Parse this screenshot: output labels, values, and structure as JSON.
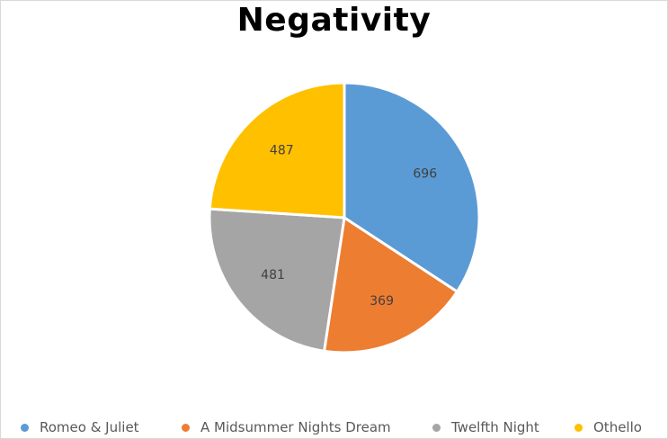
{
  "chart_data": {
    "type": "pie",
    "title": "Negativity",
    "categories": [
      "Romeo & Juliet",
      "A Midsummer Nights Dream",
      "Twelfth Night",
      "Othello"
    ],
    "values": [
      696,
      369,
      481,
      487
    ],
    "colors": [
      "#5b9bd5",
      "#ed7d31",
      "#a5a5a5",
      "#ffc000"
    ],
    "data_labels": [
      "696",
      "369",
      "481",
      "487"
    ],
    "legend_position": "bottom"
  }
}
